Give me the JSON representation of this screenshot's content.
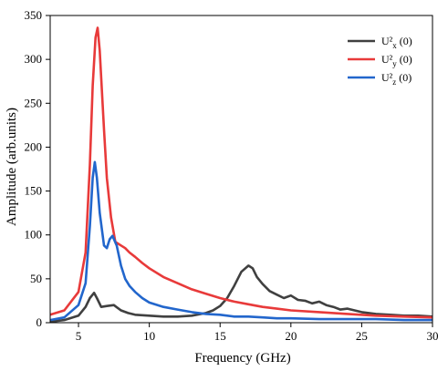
{
  "chart_data": {
    "type": "line",
    "xlabel": "Frequency (GHz)",
    "ylabel": "Amplitude (arb.units)",
    "xlim": [
      3,
      30
    ],
    "ylim": [
      0,
      350
    ],
    "xticks": [
      5,
      10,
      15,
      20,
      25,
      30
    ],
    "yticks": [
      0,
      50,
      100,
      150,
      200,
      250,
      300,
      350
    ],
    "grid": false,
    "legend_position": "top-right",
    "series": [
      {
        "name": "U²x (0)",
        "label_base": "U²",
        "label_sub": "x",
        "label_suffix": " (0)",
        "color": "#404040",
        "x": [
          3.0,
          4.0,
          5.0,
          5.5,
          5.8,
          6.1,
          6.3,
          6.6,
          7.0,
          7.5,
          8.0,
          8.5,
          9.0,
          10.0,
          11.0,
          12.0,
          13.0,
          14.0,
          14.5,
          15.0,
          15.5,
          16.0,
          16.5,
          17.0,
          17.3,
          17.6,
          18.0,
          18.5,
          19.0,
          19.5,
          20.0,
          20.5,
          21.0,
          21.5,
          22.0,
          22.5,
          23.0,
          23.5,
          24.0,
          24.5,
          25.0,
          26.0,
          27.0,
          28.0,
          29.0,
          30.0
        ],
        "values": [
          1,
          3,
          8,
          18,
          28,
          34,
          28,
          18,
          19,
          20,
          14,
          11,
          9,
          8,
          7,
          7,
          8,
          11,
          14,
          19,
          28,
          42,
          58,
          65,
          62,
          52,
          44,
          36,
          32,
          28,
          31,
          26,
          25,
          22,
          24,
          20,
          18,
          15,
          16,
          14,
          12,
          10,
          9,
          8,
          8,
          7
        ]
      },
      {
        "name": "U²y (0)",
        "label_base": "U²",
        "label_sub": "y",
        "label_suffix": " (0)",
        "color": "#e83a3a",
        "x": [
          3.0,
          4.0,
          5.0,
          5.5,
          5.8,
          6.0,
          6.2,
          6.35,
          6.5,
          6.8,
          7.0,
          7.3,
          7.6,
          8.0,
          8.3,
          8.6,
          9.0,
          9.5,
          10.0,
          11.0,
          12.0,
          13.0,
          14.0,
          15.0,
          16.0,
          17.0,
          18.0,
          19.0,
          20.0,
          22.0,
          24.0,
          26.0,
          28.0,
          30.0
        ],
        "values": [
          9,
          14,
          35,
          80,
          180,
          270,
          325,
          336,
          310,
          220,
          165,
          120,
          92,
          88,
          85,
          80,
          75,
          68,
          62,
          52,
          45,
          38,
          33,
          28,
          24,
          21,
          18,
          16,
          14,
          12,
          10,
          8,
          7,
          6
        ]
      },
      {
        "name": "U²z (0)",
        "label_base": "U²",
        "label_sub": "z",
        "label_suffix": " (0)",
        "color": "#2266cc",
        "x": [
          3.0,
          4.0,
          5.0,
          5.5,
          5.8,
          6.0,
          6.15,
          6.3,
          6.5,
          6.8,
          7.0,
          7.2,
          7.4,
          7.7,
          8.0,
          8.3,
          8.6,
          9.0,
          9.5,
          10.0,
          11.0,
          12.0,
          13.0,
          14.0,
          15.0,
          16.0,
          17.0,
          18.0,
          19.0,
          20.0,
          22.0,
          24.0,
          26.0,
          28.0,
          30.0
        ],
        "values": [
          3,
          6,
          20,
          45,
          110,
          165,
          183,
          165,
          125,
          88,
          85,
          95,
          99,
          88,
          65,
          50,
          42,
          35,
          28,
          23,
          18,
          15,
          12,
          10,
          9,
          7,
          7,
          6,
          5,
          5,
          4,
          4,
          4,
          3,
          3
        ]
      }
    ]
  }
}
